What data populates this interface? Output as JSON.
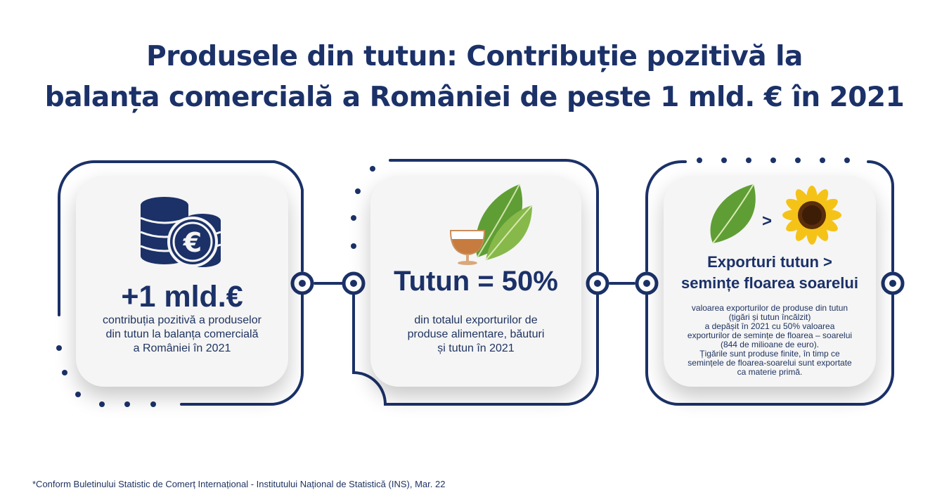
{
  "title": {
    "line1": "Produsele din tutun: Contribuție pozitivă la",
    "line2": "balanța comercială a României de peste 1 mld. € în 2021"
  },
  "cards": [
    {
      "headline": "+1 mld.€",
      "text": "contribuția pozitivă a produselor\ndin tutun la balanța comercială\na României  în 2021",
      "icon": "euro-coins-icon"
    },
    {
      "headline": "Tutun = 50%",
      "text": "din totalul exporturilor de\nproduse alimentare, băuturi\nși tutun în 2021",
      "icon": "tobacco-leaf-and-glass-icon"
    },
    {
      "headline_line1": "Exporturi tutun >",
      "headline_line2": "semințe floarea soarelui",
      "comparator": ">",
      "text": "valoarea exporturilor de produse din tutun\n(țigări și tutun încălzit)\na depășit în 2021 cu 50% valoarea\nexporturilor de semințe de floarea – soarelui\n(844 de milioane de euro).\nȚigările sunt produse finite, în timp ce\nsemințele de floarea-soarelui sunt exportate\nca materie primă.",
      "icon": "tobacco-leaf-vs-sunflower-icon"
    }
  ],
  "footnote": "*Conform Buletinului Statistic de Comerț Internațional - Institutului Național de Statistică (INS), Mar. 22",
  "colors": {
    "navy": "#1b3168",
    "card": "#f5f5f5",
    "leaf": "#6aa63a",
    "sunflower": "#f5c318"
  }
}
